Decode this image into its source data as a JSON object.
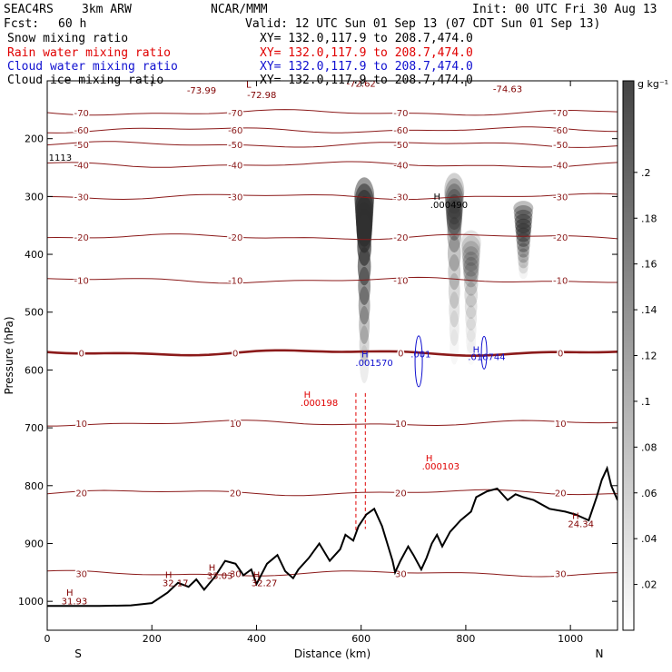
{
  "header": {
    "project": "SEAC4RS",
    "model": "3km ARW",
    "center": "NCAR/MMM",
    "init": "Init: 00 UTC Fri 30 Aug 13",
    "fcst_label": "Fcst:",
    "fcst_value": "60 h",
    "valid": "Valid: 12 UTC Sun 01 Sep 13 (07 CDT Sun 01 Sep 13)",
    "fields": [
      {
        "name": "Snow mixing ratio",
        "xy": "XY= 132.0,117.9 to 208.7,474.0",
        "color": "#000000"
      },
      {
        "name": "Rain water mixing ratio",
        "xy": "XY= 132.0,117.9 to 208.7,474.0",
        "color": "#e00000"
      },
      {
        "name": "Cloud water mixing ratio",
        "xy": "XY= 132.0,117.9 to 208.7,474.0",
        "color": "#1010d0"
      },
      {
        "name": "Cloud ice mixing ratio",
        "xy": "XY= 132.0,117.9 to 208.7,474.0",
        "color": "#000000"
      }
    ]
  },
  "chart_data": {
    "type": "heatmap",
    "xlabel": "Distance (km)",
    "ylabel": "Pressure (hPa)",
    "xlim": [
      0,
      1090
    ],
    "ylim": [
      1050,
      100
    ],
    "x_ticks": [
      "0",
      "200",
      "400",
      "600",
      "800",
      "1000"
    ],
    "x_tick_values": [
      0,
      200,
      400,
      600,
      800,
      1000
    ],
    "y_ticks": [
      "200",
      "300",
      "400",
      "500",
      "600",
      "700",
      "800",
      "900",
      "1000"
    ],
    "y_tick_values": [
      200,
      300,
      400,
      500,
      600,
      700,
      800,
      900,
      1000
    ],
    "end_labels": {
      "left": "S",
      "right": "N"
    },
    "colorbar": {
      "unit": "g kg⁻¹",
      "ticks": [
        ".02",
        ".04",
        ".06",
        ".08",
        ".1",
        ".12",
        ".14",
        ".16",
        ".18",
        ".2"
      ],
      "tick_values": [
        0.02,
        0.04,
        0.06,
        0.08,
        0.1,
        0.12,
        0.14,
        0.16,
        0.18,
        0.2
      ],
      "max": 0.24
    },
    "isotherms": [
      {
        "label": "-70",
        "p": 155
      },
      {
        "label": "-60",
        "p": 185
      },
      {
        "label": "-50",
        "p": 210
      },
      {
        "label": "-40",
        "p": 245
      },
      {
        "label": "-30",
        "p": 300
      },
      {
        "label": "-20",
        "p": 370
      },
      {
        "label": "-10",
        "p": 445
      },
      {
        "label": "0",
        "p": 570,
        "bold": true
      },
      {
        "label": "10",
        "p": 692
      },
      {
        "label": "20",
        "p": 812
      },
      {
        "label": "30",
        "p": 952
      }
    ],
    "terrain": [
      [
        0,
        1008
      ],
      [
        40,
        1008
      ],
      [
        100,
        1008
      ],
      [
        160,
        1007
      ],
      [
        200,
        1003
      ],
      [
        230,
        985
      ],
      [
        250,
        968
      ],
      [
        270,
        975
      ],
      [
        285,
        962
      ],
      [
        300,
        980
      ],
      [
        320,
        958
      ],
      [
        340,
        930
      ],
      [
        360,
        935
      ],
      [
        375,
        955
      ],
      [
        390,
        945
      ],
      [
        400,
        970
      ],
      [
        420,
        935
      ],
      [
        440,
        920
      ],
      [
        455,
        948
      ],
      [
        470,
        960
      ],
      [
        480,
        945
      ],
      [
        500,
        925
      ],
      [
        520,
        900
      ],
      [
        540,
        930
      ],
      [
        560,
        910
      ],
      [
        570,
        885
      ],
      [
        585,
        895
      ],
      [
        595,
        870
      ],
      [
        610,
        850
      ],
      [
        625,
        840
      ],
      [
        640,
        870
      ],
      [
        650,
        900
      ],
      [
        660,
        930
      ],
      [
        665,
        950
      ],
      [
        675,
        930
      ],
      [
        690,
        905
      ],
      [
        700,
        920
      ],
      [
        715,
        945
      ],
      [
        725,
        925
      ],
      [
        735,
        900
      ],
      [
        745,
        885
      ],
      [
        755,
        905
      ],
      [
        770,
        880
      ],
      [
        790,
        860
      ],
      [
        810,
        845
      ],
      [
        820,
        820
      ],
      [
        840,
        810
      ],
      [
        860,
        805
      ],
      [
        880,
        825
      ],
      [
        895,
        815
      ],
      [
        910,
        820
      ],
      [
        930,
        825
      ],
      [
        960,
        840
      ],
      [
        990,
        845
      ],
      [
        1010,
        850
      ],
      [
        1035,
        860
      ],
      [
        1050,
        820
      ],
      [
        1060,
        790
      ],
      [
        1070,
        770
      ],
      [
        1078,
        800
      ],
      [
        1090,
        825
      ]
    ],
    "snow_cells": [
      {
        "x": 606,
        "p_top": 300,
        "p_bot": 590,
        "core_p": 370,
        "max": 0.22
      },
      {
        "x": 778,
        "p_top": 290,
        "p_bot": 560,
        "core_p": 350,
        "max": 0.1
      },
      {
        "x": 810,
        "p_top": 380,
        "p_bot": 570,
        "core_p": 440,
        "max": 0.06
      },
      {
        "x": 910,
        "p_top": 320,
        "p_bot": 430,
        "core_p": 370,
        "max": 0.14
      }
    ],
    "annotations": [
      {
        "text": "-73.99",
        "x": 295,
        "p": 122,
        "color": "#800000"
      },
      {
        "text": "L",
        "x": 385,
        "p": 112,
        "color": "#800000"
      },
      {
        "text": "-72.98",
        "x": 410,
        "p": 130,
        "color": "#800000"
      },
      {
        "text": "-74.63",
        "x": 880,
        "p": 120,
        "color": "#800000"
      },
      {
        "text": "-72.62",
        "x": 600,
        "p": 110,
        "color": "#800000"
      },
      {
        "text": "1113",
        "x": 25,
        "p": 238,
        "color": "#000000"
      },
      {
        "text": "H",
        "x": 745,
        "p": 306,
        "color": "#000000"
      },
      {
        "text": ".000490",
        "x": 768,
        "p": 320,
        "color": "#000000"
      },
      {
        "text": "H",
        "x": 607,
        "p": 578,
        "color": "#1010d0"
      },
      {
        "text": ".001570",
        "x": 625,
        "p": 593,
        "color": "#1010d0"
      },
      {
        "text": ".001",
        "x": 714,
        "p": 578,
        "color": "#1010d0"
      },
      {
        "text": "H",
        "x": 820,
        "p": 570,
        "color": "#1010d0"
      },
      {
        "text": ".016744",
        "x": 840,
        "p": 583,
        "color": "#1010d0"
      },
      {
        "text": "H",
        "x": 497,
        "p": 648,
        "color": "#e00000"
      },
      {
        "text": ".000198",
        "x": 520,
        "p": 662,
        "color": "#e00000"
      },
      {
        "text": "H",
        "x": 730,
        "p": 758,
        "color": "#e00000"
      },
      {
        "text": ".000103",
        "x": 752,
        "p": 772,
        "color": "#e00000"
      },
      {
        "text": "H",
        "x": 1010,
        "p": 858,
        "color": "#800000"
      },
      {
        "text": "24.34",
        "x": 1020,
        "p": 872,
        "color": "#800000"
      },
      {
        "text": "H",
        "x": 43,
        "p": 990,
        "color": "#800000"
      },
      {
        "text": "31.93",
        "x": 52,
        "p": 1005,
        "color": "#800000"
      },
      {
        "text": "H",
        "x": 232,
        "p": 960,
        "color": "#800000"
      },
      {
        "text": "32.17",
        "x": 245,
        "p": 974,
        "color": "#800000"
      },
      {
        "text": "H",
        "x": 315,
        "p": 947,
        "color": "#800000"
      },
      {
        "text": "33.03",
        "x": 330,
        "p": 961,
        "color": "#800000"
      },
      {
        "text": "H",
        "x": 400,
        "p": 960,
        "color": "#800000"
      },
      {
        "text": "32.27",
        "x": 415,
        "p": 974,
        "color": "#800000"
      }
    ]
  }
}
